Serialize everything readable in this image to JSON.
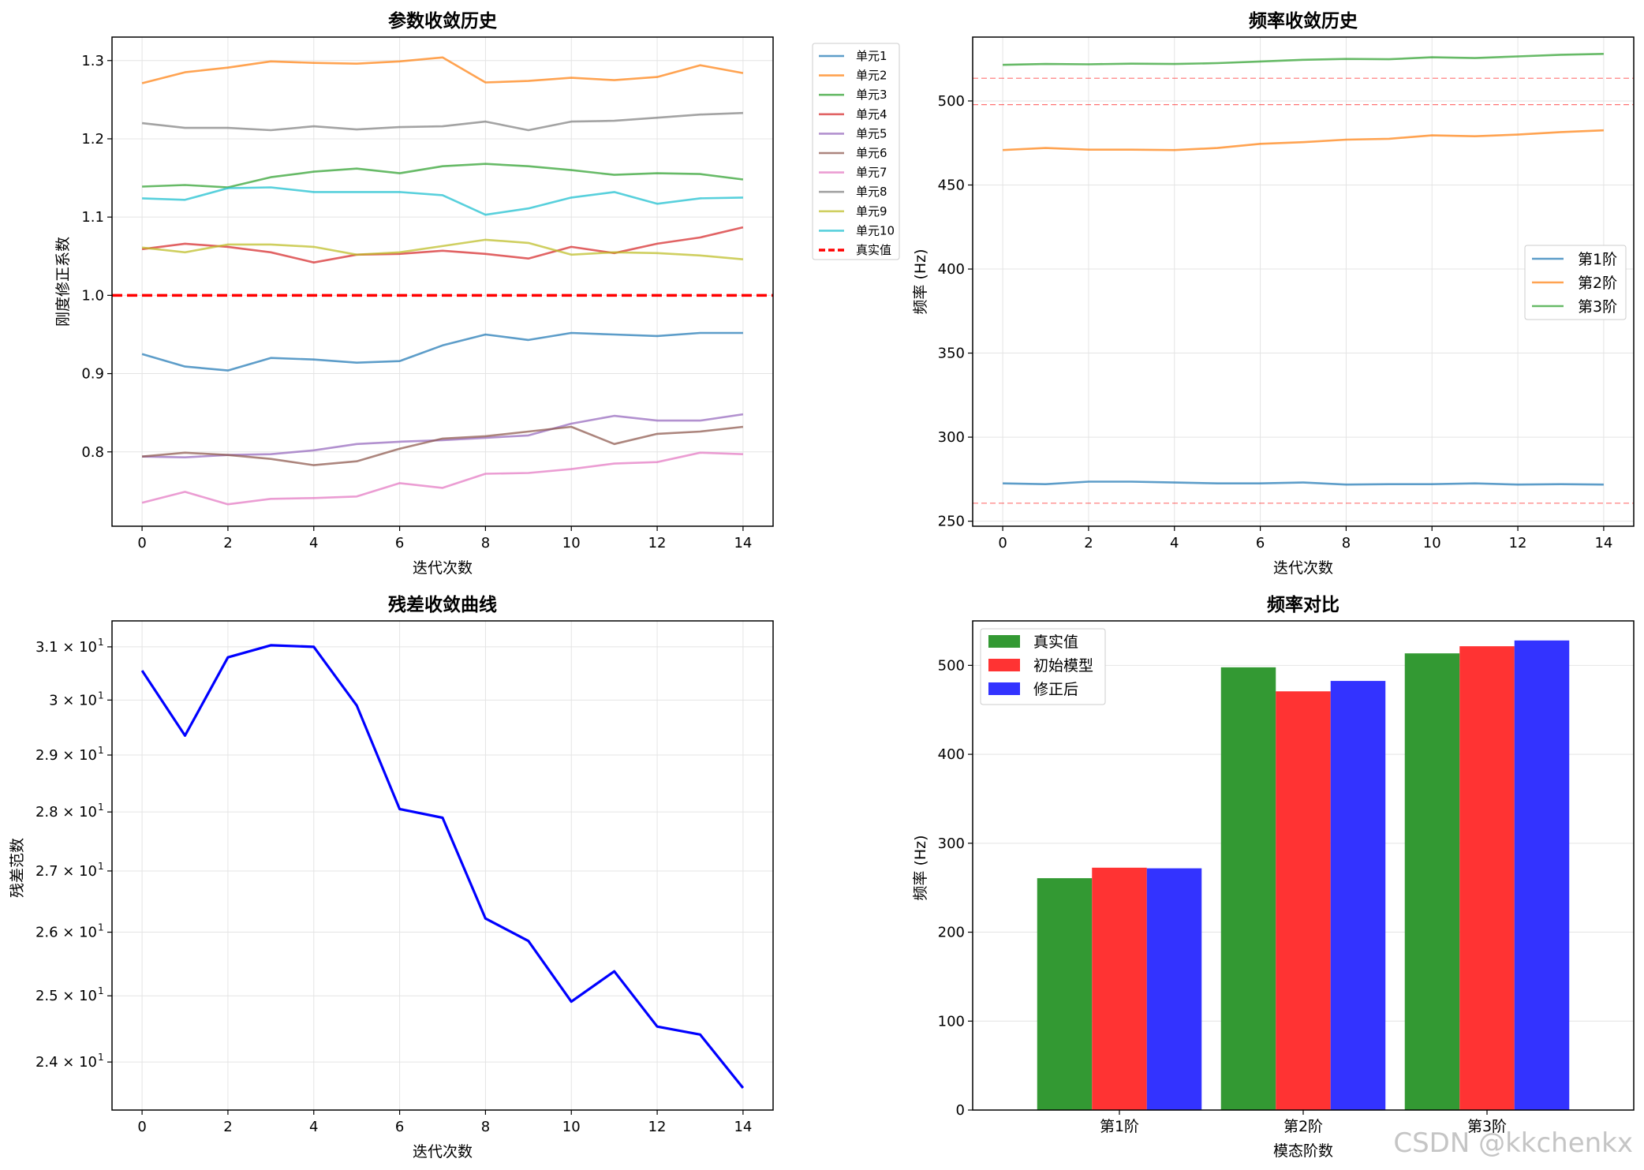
{
  "chart_data": [
    {
      "type": "line",
      "title": "参数收敛历史",
      "xlabel": "迭代次数",
      "ylabel": "刚度修正系数",
      "xlim": [
        -0.7,
        14.7
      ],
      "ylim": [
        0.705,
        1.33
      ],
      "xticks": [
        0,
        2,
        4,
        6,
        8,
        10,
        12,
        14
      ],
      "yticks": [
        0.8,
        0.9,
        1.0,
        1.1,
        1.2,
        1.3
      ],
      "ytick_labels": [
        "0.8",
        "0.9",
        "1.0",
        "1.1",
        "1.2",
        "1.3"
      ],
      "x": [
        0,
        1,
        2,
        3,
        4,
        5,
        6,
        7,
        8,
        9,
        10,
        11,
        12,
        13,
        14
      ],
      "series": [
        {
          "name": "单元1",
          "color": "#1f77b4",
          "values": [
            0.925,
            0.909,
            0.904,
            0.92,
            0.918,
            0.914,
            0.916,
            0.936,
            0.95,
            0.943,
            0.952,
            0.95,
            0.948,
            0.952,
            0.952
          ]
        },
        {
          "name": "单元2",
          "color": "#ff7f0e",
          "values": [
            1.271,
            1.285,
            1.291,
            1.299,
            1.297,
            1.296,
            1.299,
            1.304,
            1.272,
            1.274,
            1.278,
            1.275,
            1.279,
            1.294,
            1.284
          ]
        },
        {
          "name": "单元3",
          "color": "#2ca02c",
          "values": [
            1.139,
            1.141,
            1.138,
            1.151,
            1.158,
            1.162,
            1.156,
            1.165,
            1.168,
            1.165,
            1.16,
            1.154,
            1.156,
            1.155,
            1.148
          ]
        },
        {
          "name": "单元4",
          "color": "#d62728",
          "values": [
            1.059,
            1.066,
            1.062,
            1.055,
            1.042,
            1.052,
            1.053,
            1.057,
            1.053,
            1.047,
            1.062,
            1.054,
            1.066,
            1.074,
            1.087
          ]
        },
        {
          "name": "单元5",
          "color": "#9467bd",
          "values": [
            0.794,
            0.793,
            0.796,
            0.797,
            0.802,
            0.81,
            0.813,
            0.815,
            0.818,
            0.821,
            0.836,
            0.846,
            0.84,
            0.84,
            0.848
          ]
        },
        {
          "name": "单元6",
          "color": "#8c564b",
          "values": [
            0.794,
            0.799,
            0.796,
            0.791,
            0.783,
            0.788,
            0.804,
            0.817,
            0.82,
            0.826,
            0.832,
            0.81,
            0.823,
            0.826,
            0.832
          ]
        },
        {
          "name": "单元7",
          "color": "#e377c2",
          "values": [
            0.735,
            0.749,
            0.733,
            0.74,
            0.741,
            0.743,
            0.76,
            0.754,
            0.772,
            0.773,
            0.778,
            0.785,
            0.787,
            0.799,
            0.797
          ]
        },
        {
          "name": "单元8",
          "color": "#7f7f7f",
          "values": [
            1.22,
            1.214,
            1.214,
            1.211,
            1.216,
            1.212,
            1.215,
            1.216,
            1.222,
            1.211,
            1.222,
            1.223,
            1.227,
            1.231,
            1.233
          ]
        },
        {
          "name": "单元9",
          "color": "#bcbd22",
          "values": [
            1.061,
            1.055,
            1.065,
            1.065,
            1.062,
            1.052,
            1.055,
            1.063,
            1.071,
            1.067,
            1.052,
            1.055,
            1.054,
            1.051,
            1.046
          ]
        },
        {
          "name": "单元10",
          "color": "#17becf",
          "values": [
            1.124,
            1.122,
            1.137,
            1.138,
            1.132,
            1.132,
            1.132,
            1.128,
            1.103,
            1.111,
            1.125,
            1.132,
            1.117,
            1.124,
            1.125
          ]
        }
      ],
      "reference": {
        "name": "真实值",
        "value": 1.0,
        "color": "#ff0000"
      },
      "legend": "outside right"
    },
    {
      "type": "line",
      "title": "频率收敛历史",
      "xlabel": "迭代次数",
      "ylabel": "频率 (Hz)",
      "xlim": [
        -0.7,
        14.7
      ],
      "ylim": [
        247,
        538
      ],
      "xticks": [
        0,
        2,
        4,
        6,
        8,
        10,
        12,
        14
      ],
      "yticks": [
        250,
        300,
        350,
        400,
        450,
        500
      ],
      "ytick_labels": [
        "250",
        "300",
        "350",
        "400",
        "450",
        "500"
      ],
      "x": [
        0,
        1,
        2,
        3,
        4,
        5,
        6,
        7,
        8,
        9,
        10,
        11,
        12,
        13,
        14
      ],
      "series": [
        {
          "name": "第1阶",
          "color": "#1f77b4",
          "values": [
            272.5,
            272.0,
            273.5,
            273.5,
            273.0,
            272.5,
            272.5,
            273.0,
            271.8,
            272.0,
            272.0,
            272.5,
            271.8,
            272.0,
            271.8
          ]
        },
        {
          "name": "第2阶",
          "color": "#ff7f0e",
          "values": [
            470.8,
            472.0,
            471.0,
            471.0,
            470.8,
            472.0,
            474.5,
            475.5,
            477.0,
            477.5,
            479.5,
            479.0,
            480.0,
            481.5,
            482.5
          ]
        },
        {
          "name": "第3阶",
          "color": "#2ca02c",
          "values": [
            521.5,
            522.0,
            521.8,
            522.2,
            522.0,
            522.5,
            523.5,
            524.5,
            525.0,
            524.8,
            526.0,
            525.5,
            526.5,
            527.5,
            528.0
          ]
        }
      ],
      "reference_lines": [
        260.7,
        497.8,
        513.5
      ],
      "reference_color": "#ff0000",
      "legend": "center right"
    },
    {
      "type": "line",
      "title": "残差收敛曲线",
      "xlabel": "迭代次数",
      "ylabel": "残差范数",
      "yscale": "log",
      "xlim": [
        -0.7,
        14.7
      ],
      "ylim": [
        23.3,
        31.5
      ],
      "xticks": [
        0,
        2,
        4,
        6,
        8,
        10,
        12,
        14
      ],
      "yticks": [
        24,
        25,
        26,
        27,
        28,
        29,
        30,
        31
      ],
      "ytick_labels": [
        "2.4 × 10",
        "2.5 × 10",
        "2.6 × 10",
        "2.7 × 10",
        "2.8 × 10",
        "2.9 × 10",
        "3 × 10",
        "3.1 × 10"
      ],
      "ytick_exponent": "1",
      "x": [
        0,
        1,
        2,
        3,
        4,
        5,
        6,
        7,
        8,
        9,
        10,
        11,
        12,
        13,
        14
      ],
      "series": [
        {
          "name": "残差",
          "color": "#0000ff",
          "values": [
            30.55,
            29.35,
            30.8,
            31.03,
            31.0,
            29.9,
            28.05,
            27.9,
            26.22,
            25.86,
            24.91,
            25.38,
            24.53,
            24.41,
            23.62
          ]
        }
      ]
    },
    {
      "type": "bar",
      "title": "频率对比",
      "xlabel": "模态阶数",
      "ylabel": "频率 (Hz)",
      "ylim": [
        0,
        550
      ],
      "yticks": [
        0,
        100,
        200,
        300,
        400,
        500
      ],
      "ytick_labels": [
        "0",
        "100",
        "200",
        "300",
        "400",
        "500"
      ],
      "categories": [
        "第1阶",
        "第2阶",
        "第3阶"
      ],
      "series": [
        {
          "name": "真实值",
          "color": "#2ca02c",
          "bar_color": "#339933",
          "values": [
            260.7,
            497.8,
            513.5
          ]
        },
        {
          "name": "初始模型",
          "color": "#ff3333",
          "bar_color": "#ff3333",
          "values": [
            272.5,
            470.8,
            521.5
          ]
        },
        {
          "name": "修正后",
          "color": "#3333ff",
          "bar_color": "#3333ff",
          "values": [
            271.8,
            482.5,
            528.0
          ]
        }
      ],
      "legend": "top-left"
    }
  ],
  "watermark": "CSDN @kkchenkx"
}
